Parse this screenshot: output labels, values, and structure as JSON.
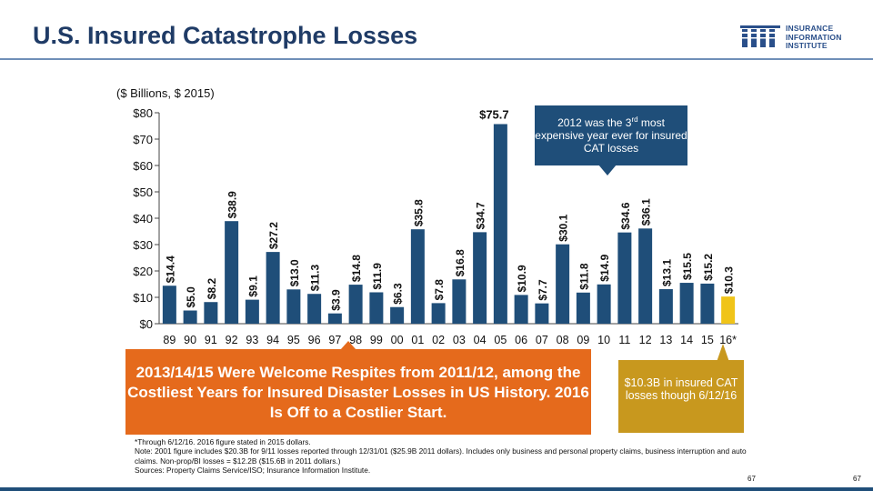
{
  "header": {
    "title": "U.S. Insured Catastrophe Losses",
    "logo_lines": [
      "INSURANCE",
      "INFORMATION",
      "INSTITUTE"
    ]
  },
  "subtitle": "($ Billions, $ 2015)",
  "colors": {
    "title": "#1f3b66",
    "bar": "#1f4e79",
    "bar_highlight": "#f0c419",
    "orange": "#e56a1c",
    "gold": "#c8981e"
  },
  "chart_data": {
    "type": "bar",
    "categories": [
      "89",
      "90",
      "91",
      "92",
      "93",
      "94",
      "95",
      "96",
      "97",
      "98",
      "99",
      "00",
      "01",
      "02",
      "03",
      "04",
      "05",
      "06",
      "07",
      "08",
      "09",
      "10",
      "11",
      "12",
      "13",
      "14",
      "15",
      "16*"
    ],
    "values": [
      14.4,
      5.0,
      8.2,
      38.9,
      9.1,
      27.2,
      13.0,
      11.3,
      3.9,
      14.8,
      11.9,
      6.3,
      35.8,
      7.8,
      16.8,
      34.7,
      75.7,
      10.9,
      7.7,
      30.1,
      11.8,
      14.9,
      34.6,
      36.1,
      13.1,
      15.5,
      15.2,
      10.3
    ],
    "labels": [
      "$14.4",
      "$5.0",
      "$8.2",
      "$38.9",
      "$9.1",
      "$27.2",
      "$13.0",
      "$11.3",
      "$3.9",
      "$14.8",
      "$11.9",
      "$6.3",
      "$35.8",
      "$7.8",
      "$16.8",
      "$34.7",
      "$75.7",
      "$10.9",
      "$7.7",
      "$30.1",
      "$11.8",
      "$14.9",
      "$34.6",
      "$36.1",
      "$13.1",
      "$15.5",
      "$15.2",
      "$10.3"
    ],
    "highlight_index": 27,
    "yticks": [
      0,
      10,
      20,
      30,
      40,
      50,
      60,
      70,
      80
    ],
    "ytick_labels": [
      "$0",
      "$10",
      "$20",
      "$30",
      "$40",
      "$50",
      "$60",
      "$70",
      "$80"
    ],
    "ylim": [
      0,
      80
    ],
    "title": "",
    "xlabel": "",
    "ylabel": ""
  },
  "callouts": {
    "top_part1": "2012  was the 3",
    "top_sup": "rd",
    "top_part2": " most expensive year ever for insured CAT losses",
    "orange": "2013/14/15 Were Welcome Respites from 2011/12, among the Costliest Years for Insured Disaster Losses in US History.  2016 Is Off to a Costlier Start.",
    "gold": "$10.3B in insured CAT losses though 6/12/16"
  },
  "footnotes": {
    "line1": "*Through  6/12/16.  2016 figure stated in 2015 dollars.",
    "line2": "Note: 2001 figure includes $20.3B for 9/11 losses reported through 12/31/01 ($25.9B 2011 dollars). Includes only business and personal property claims, business interruption and auto claims. Non-prop/BI losses = $12.2B ($15.6B in 2011 dollars.)",
    "line3": "Sources: Property Claims Service/ISO; Insurance Information Institute."
  },
  "page_numbers": [
    "67",
    "67"
  ]
}
